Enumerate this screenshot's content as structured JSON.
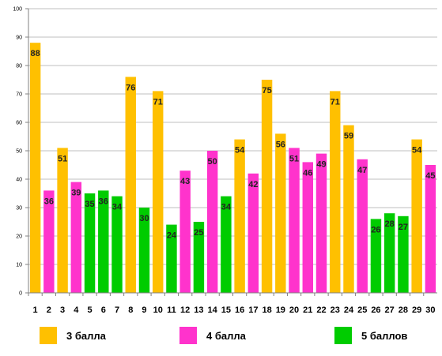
{
  "chart_data": {
    "type": "bar",
    "categories": [
      "1",
      "2",
      "3",
      "4",
      "5",
      "6",
      "7",
      "8",
      "9",
      "10",
      "11",
      "12",
      "13",
      "14",
      "15",
      "16",
      "17",
      "18",
      "19",
      "20",
      "21",
      "22",
      "23",
      "24",
      "25",
      "26",
      "27",
      "28",
      "29",
      "30"
    ],
    "values": [
      88,
      36,
      51,
      39,
      35,
      36,
      34,
      76,
      30,
      71,
      24,
      43,
      25,
      50,
      34,
      54,
      42,
      75,
      56,
      51,
      46,
      49,
      71,
      59,
      47,
      26,
      28,
      27,
      54,
      45
    ],
    "groups": [
      "3",
      "4",
      "3",
      "4",
      "5",
      "5",
      "5",
      "3",
      "5",
      "3",
      "5",
      "4",
      "5",
      "4",
      "5",
      "3",
      "4",
      "3",
      "3",
      "4",
      "4",
      "4",
      "3",
      "3",
      "4",
      "5",
      "5",
      "5",
      "3",
      "4"
    ],
    "ylim": [
      0,
      100
    ],
    "yticks": [
      "0",
      "10",
      "20",
      "30",
      "40",
      "50",
      "60",
      "70",
      "80",
      "90",
      "100"
    ],
    "grid": true,
    "legend_position": "bottom",
    "colors": {
      "3": "#FFC000",
      "4": "#FF33CC",
      "5": "#00CC00"
    }
  },
  "legend": {
    "items": [
      {
        "key": "3",
        "label": "3 балла",
        "color": "#FFC000"
      },
      {
        "key": "4",
        "label": "4 балла",
        "color": "#FF33CC"
      },
      {
        "key": "5",
        "label": "5 баллов",
        "color": "#00CC00"
      }
    ]
  }
}
